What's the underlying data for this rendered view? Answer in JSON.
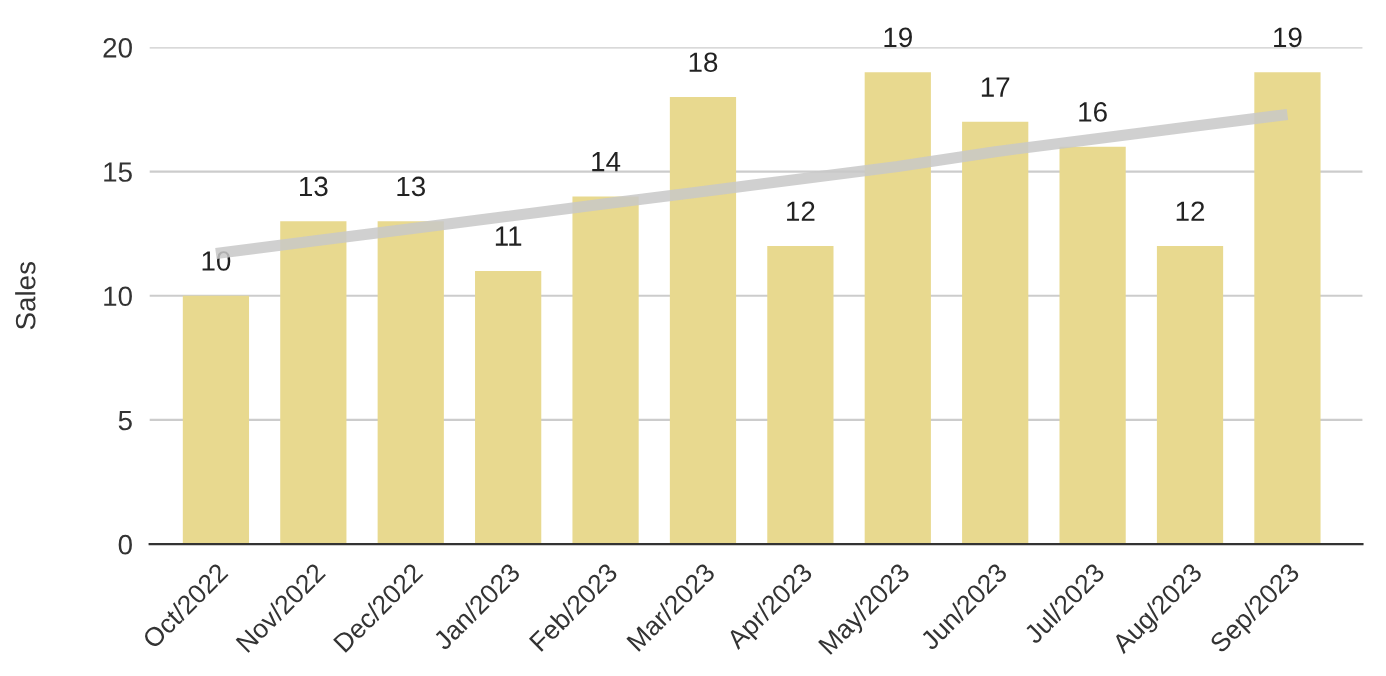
{
  "chart_data": {
    "type": "bar",
    "ylabel": "Sales",
    "categories": [
      "Oct/2022",
      "Nov/2022",
      "Dec/2022",
      "Jan/2023",
      "Feb/2023",
      "Mar/2023",
      "Apr/2023",
      "May/2023",
      "Jun/2023",
      "Jul/2023",
      "Aug/2023",
      "Sep/2023"
    ],
    "series": [
      {
        "color": "#e8d98f",
        "values": [
          10,
          13,
          13,
          11,
          14,
          18,
          12,
          19,
          17,
          16,
          12,
          19
        ],
        "value_labels": [
          "10",
          "13",
          "13",
          "11",
          "14",
          "18",
          "12",
          "19",
          "17",
          "16",
          "12",
          "19"
        ]
      },
      {
        "type": "line",
        "color": "#c8c8c8",
        "values": [
          11.7,
          12.2,
          12.7,
          13.2,
          13.7,
          14.2,
          14.7,
          15.2,
          15.8,
          16.3,
          16.8,
          17.3
        ]
      }
    ],
    "ylim": [
      0,
      20
    ],
    "yticks": [
      0,
      5,
      10,
      15,
      20
    ],
    "grid": "y",
    "legend": false
  }
}
